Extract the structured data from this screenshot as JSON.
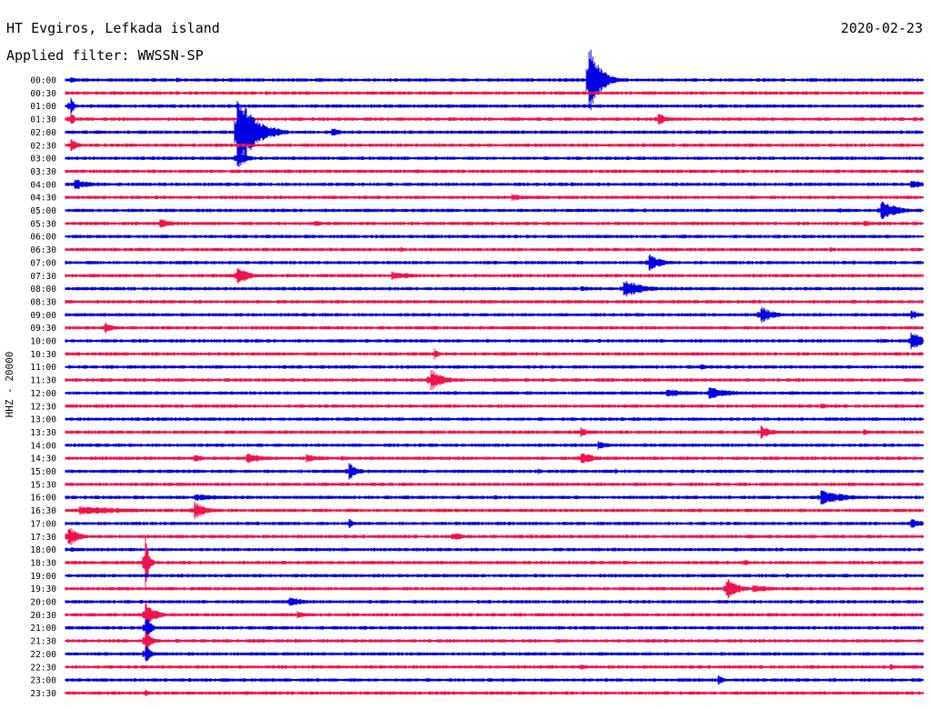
{
  "chart_data": {
    "type": "line",
    "title": "HT Evgiros, Lefkada island",
    "subtitle": "Applied filter: WWSSN-SP",
    "date": "2020-02-23",
    "ylabel": "HHZ - 20000",
    "colors": [
      "#0000e0",
      "#f0124a"
    ],
    "rows": [
      {
        "time": "00:00",
        "events": [
          {
            "pos": 0.006,
            "amp": 1.2,
            "dur": 0.006
          },
          {
            "pos": 0.13,
            "amp": 0.8,
            "dur": 0.006
          },
          {
            "pos": 0.61,
            "amp": 10.0,
            "dur": 0.012
          }
        ]
      },
      {
        "time": "00:30",
        "events": [
          {
            "pos": 0.235,
            "amp": 0.6,
            "dur": 0.006
          }
        ]
      },
      {
        "time": "01:00",
        "events": [
          {
            "pos": 0.006,
            "amp": 3.0,
            "dur": 0.004
          }
        ]
      },
      {
        "time": "01:30",
        "events": [
          {
            "pos": 0.006,
            "amp": 2.5,
            "dur": 0.004
          },
          {
            "pos": 0.69,
            "amp": 1.8,
            "dur": 0.012
          },
          {
            "pos": 0.765,
            "amp": 0.4,
            "dur": 0.006
          }
        ]
      },
      {
        "time": "02:00",
        "events": [
          {
            "pos": 0.2,
            "amp": 11.0,
            "dur": 0.02
          },
          {
            "pos": 0.31,
            "amp": 1.5,
            "dur": 0.01
          },
          {
            "pos": 0.49,
            "amp": 0.4,
            "dur": 0.004
          },
          {
            "pos": 0.75,
            "amp": 0.6,
            "dur": 0.012
          }
        ]
      },
      {
        "time": "02:30",
        "events": [
          {
            "pos": 0.006,
            "amp": 1.8,
            "dur": 0.01
          },
          {
            "pos": 0.91,
            "amp": 0.4,
            "dur": 0.005
          }
        ]
      },
      {
        "time": "03:00",
        "events": [
          {
            "pos": 0.2,
            "amp": 3.0,
            "dur": 0.01
          }
        ]
      },
      {
        "time": "03:30",
        "events": [
          {
            "pos": 0.26,
            "amp": 0.6,
            "dur": 0.008
          }
        ]
      },
      {
        "time": "04:00",
        "events": [
          {
            "pos": 0.01,
            "amp": 1.5,
            "dur": 0.022
          },
          {
            "pos": 0.59,
            "amp": 0.6,
            "dur": 0.01
          },
          {
            "pos": 0.985,
            "amp": 1.2,
            "dur": 0.02
          }
        ]
      },
      {
        "time": "04:30",
        "events": [
          {
            "pos": 0.35,
            "amp": 0.4,
            "dur": 0.03
          },
          {
            "pos": 0.52,
            "amp": 1.0,
            "dur": 0.018
          }
        ]
      },
      {
        "time": "05:00",
        "events": [
          {
            "pos": 0.9,
            "amp": 0.6,
            "dur": 0.03
          },
          {
            "pos": 0.95,
            "amp": 2.8,
            "dur": 0.02
          }
        ]
      },
      {
        "time": "05:30",
        "events": [
          {
            "pos": 0.11,
            "amp": 1.5,
            "dur": 0.016
          },
          {
            "pos": 0.29,
            "amp": 0.9,
            "dur": 0.012
          },
          {
            "pos": 0.93,
            "amp": 0.8,
            "dur": 0.02
          }
        ]
      },
      {
        "time": "06:00",
        "events": []
      },
      {
        "time": "06:30",
        "events": [
          {
            "pos": 0.39,
            "amp": 1.0,
            "dur": 0.006
          },
          {
            "pos": 0.89,
            "amp": 1.0,
            "dur": 0.008
          }
        ]
      },
      {
        "time": "07:00",
        "events": [
          {
            "pos": 0.68,
            "amp": 2.5,
            "dur": 0.014
          },
          {
            "pos": 0.52,
            "amp": 0.4,
            "dur": 0.006
          }
        ]
      },
      {
        "time": "07:30",
        "events": [
          {
            "pos": 0.2,
            "amp": 3.0,
            "dur": 0.012
          },
          {
            "pos": 0.38,
            "amp": 1.2,
            "dur": 0.03
          }
        ]
      },
      {
        "time": "08:00",
        "events": [
          {
            "pos": 0.6,
            "amp": 0.8,
            "dur": 0.02
          },
          {
            "pos": 0.65,
            "amp": 2.5,
            "dur": 0.025
          },
          {
            "pos": 0.05,
            "amp": 0.4,
            "dur": 0.01
          }
        ]
      },
      {
        "time": "08:30",
        "events": [
          {
            "pos": 0.48,
            "amp": 0.4,
            "dur": 0.02
          }
        ]
      },
      {
        "time": "09:00",
        "events": [
          {
            "pos": 0.81,
            "amp": 2.5,
            "dur": 0.014
          },
          {
            "pos": 0.985,
            "amp": 1.5,
            "dur": 0.01
          }
        ]
      },
      {
        "time": "09:30",
        "events": [
          {
            "pos": 0.045,
            "amp": 1.5,
            "dur": 0.012
          },
          {
            "pos": 0.26,
            "amp": 0.6,
            "dur": 0.03
          },
          {
            "pos": 0.45,
            "amp": 0.4,
            "dur": 0.04
          }
        ]
      },
      {
        "time": "10:00",
        "events": [
          {
            "pos": 0.49,
            "amp": 0.6,
            "dur": 0.006
          },
          {
            "pos": 0.985,
            "amp": 3.0,
            "dur": 0.016
          },
          {
            "pos": 0.95,
            "amp": 0.6,
            "dur": 0.02
          }
        ]
      },
      {
        "time": "10:30",
        "events": [
          {
            "pos": 0.43,
            "amp": 1.5,
            "dur": 0.006
          },
          {
            "pos": 0.46,
            "amp": 0.4,
            "dur": 0.03
          }
        ]
      },
      {
        "time": "11:00",
        "events": [
          {
            "pos": 0.33,
            "amp": 0.6,
            "dur": 0.01
          },
          {
            "pos": 0.74,
            "amp": 0.8,
            "dur": 0.012
          },
          {
            "pos": 0.78,
            "amp": 0.6,
            "dur": 0.01
          }
        ]
      },
      {
        "time": "11:30",
        "events": [
          {
            "pos": 0.425,
            "amp": 3.0,
            "dur": 0.016
          }
        ]
      },
      {
        "time": "12:00",
        "events": [
          {
            "pos": 0.7,
            "amp": 1.2,
            "dur": 0.03
          },
          {
            "pos": 0.75,
            "amp": 1.8,
            "dur": 0.025
          },
          {
            "pos": 0.5,
            "amp": 0.3,
            "dur": 0.01
          }
        ]
      },
      {
        "time": "12:30",
        "events": [
          {
            "pos": 0.38,
            "amp": 0.4,
            "dur": 0.04
          },
          {
            "pos": 0.88,
            "amp": 1.0,
            "dur": 0.008
          }
        ]
      },
      {
        "time": "13:00",
        "events": [
          {
            "pos": 0.31,
            "amp": 0.3,
            "dur": 0.01
          }
        ]
      },
      {
        "time": "13:30",
        "events": [
          {
            "pos": 0.4,
            "amp": 0.4,
            "dur": 0.04
          },
          {
            "pos": 0.6,
            "amp": 1.5,
            "dur": 0.01
          },
          {
            "pos": 0.81,
            "amp": 1.8,
            "dur": 0.014
          },
          {
            "pos": 0.93,
            "amp": 0.8,
            "dur": 0.012
          }
        ]
      },
      {
        "time": "14:00",
        "events": [
          {
            "pos": 0.62,
            "amp": 1.2,
            "dur": 0.016
          }
        ]
      },
      {
        "time": "14:30",
        "events": [
          {
            "pos": 0.15,
            "amp": 1.0,
            "dur": 0.016
          },
          {
            "pos": 0.21,
            "amp": 1.5,
            "dur": 0.022
          },
          {
            "pos": 0.28,
            "amp": 1.2,
            "dur": 0.022
          },
          {
            "pos": 0.32,
            "amp": 0.8,
            "dur": 0.016
          },
          {
            "pos": 0.6,
            "amp": 2.0,
            "dur": 0.016
          }
        ]
      },
      {
        "time": "15:00",
        "events": [
          {
            "pos": 0.33,
            "amp": 2.5,
            "dur": 0.01
          },
          {
            "pos": 0.55,
            "amp": 1.0,
            "dur": 0.006
          },
          {
            "pos": 0.59,
            "amp": 0.6,
            "dur": 0.01
          },
          {
            "pos": 0.64,
            "amp": 0.8,
            "dur": 0.006
          }
        ]
      },
      {
        "time": "15:30",
        "events": [
          {
            "pos": 0.66,
            "amp": 0.6,
            "dur": 0.03
          }
        ]
      },
      {
        "time": "16:00",
        "events": [
          {
            "pos": 0.15,
            "amp": 1.0,
            "dur": 0.04
          },
          {
            "pos": 0.5,
            "amp": 0.6,
            "dur": 0.012
          },
          {
            "pos": 0.88,
            "amp": 2.0,
            "dur": 0.03
          }
        ]
      },
      {
        "time": "16:30",
        "events": [
          {
            "pos": 0.015,
            "amp": 1.2,
            "dur": 0.08
          },
          {
            "pos": 0.15,
            "amp": 2.5,
            "dur": 0.014
          },
          {
            "pos": 0.6,
            "amp": 0.4,
            "dur": 0.02
          }
        ]
      },
      {
        "time": "17:00",
        "events": [
          {
            "pos": 0.33,
            "amp": 1.5,
            "dur": 0.006
          },
          {
            "pos": 0.985,
            "amp": 1.5,
            "dur": 0.016
          },
          {
            "pos": 0.88,
            "amp": 0.6,
            "dur": 0.02
          }
        ]
      },
      {
        "time": "17:30",
        "events": [
          {
            "pos": 0.003,
            "amp": 3.0,
            "dur": 0.012
          },
          {
            "pos": 0.45,
            "amp": 1.2,
            "dur": 0.016
          },
          {
            "pos": 0.93,
            "amp": 0.4,
            "dur": 0.01
          }
        ]
      },
      {
        "time": "18:00",
        "events": [
          {
            "pos": 0.006,
            "amp": 0.8,
            "dur": 0.02
          },
          {
            "pos": 0.7,
            "amp": 0.4,
            "dur": 0.01
          }
        ]
      },
      {
        "time": "18:30",
        "events": [
          {
            "pos": 0.093,
            "amp": 8.0,
            "dur": 0.004
          },
          {
            "pos": 0.79,
            "amp": 1.0,
            "dur": 0.01
          }
        ]
      },
      {
        "time": "19:00",
        "events": [
          {
            "pos": 0.84,
            "amp": 0.8,
            "dur": 0.006
          }
        ]
      },
      {
        "time": "19:30",
        "events": [
          {
            "pos": 0.77,
            "amp": 3.0,
            "dur": 0.014
          },
          {
            "pos": 0.8,
            "amp": 1.2,
            "dur": 0.025
          },
          {
            "pos": 0.72,
            "amp": 0.4,
            "dur": 0.01
          }
        ]
      },
      {
        "time": "20:00",
        "events": [
          {
            "pos": 0.26,
            "amp": 1.5,
            "dur": 0.018
          },
          {
            "pos": 0.86,
            "amp": 0.3,
            "dur": 0.01
          }
        ]
      },
      {
        "time": "20:30",
        "events": [
          {
            "pos": 0.093,
            "amp": 3.5,
            "dur": 0.012
          },
          {
            "pos": 0.27,
            "amp": 1.0,
            "dur": 0.014
          }
        ]
      },
      {
        "time": "21:00",
        "events": [
          {
            "pos": 0.093,
            "amp": 4.0,
            "dur": 0.006
          }
        ]
      },
      {
        "time": "21:30",
        "events": [
          {
            "pos": 0.093,
            "amp": 4.0,
            "dur": 0.006
          }
        ]
      },
      {
        "time": "22:00",
        "events": [
          {
            "pos": 0.093,
            "amp": 3.0,
            "dur": 0.006
          }
        ]
      },
      {
        "time": "22:30",
        "events": [
          {
            "pos": 0.6,
            "amp": 1.0,
            "dur": 0.008
          },
          {
            "pos": 0.96,
            "amp": 1.0,
            "dur": 0.008
          }
        ]
      },
      {
        "time": "23:00",
        "events": [
          {
            "pos": 0.11,
            "amp": 0.6,
            "dur": 0.012
          },
          {
            "pos": 0.46,
            "amp": 0.5,
            "dur": 0.012
          },
          {
            "pos": 0.76,
            "amp": 1.5,
            "dur": 0.008
          }
        ]
      },
      {
        "time": "23:30",
        "events": [
          {
            "pos": 0.093,
            "amp": 1.0,
            "dur": 0.006
          }
        ]
      }
    ]
  }
}
